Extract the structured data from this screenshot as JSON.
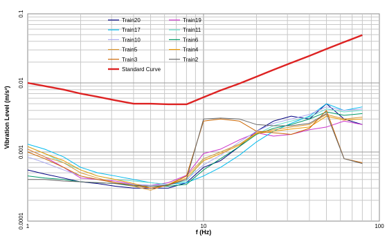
{
  "chart_data": {
    "type": "line",
    "xlabel": "f (Hz)",
    "ylabel": "Vibration Level (m/s²)",
    "x_scale": "log",
    "y_scale": "log",
    "xlim": [
      1,
      100
    ],
    "ylim": [
      0.0001,
      0.1
    ],
    "x_ticks": [
      "1",
      "10",
      "100"
    ],
    "y_ticks": [
      "0.0001",
      "0.001",
      "0.01",
      "0.1"
    ],
    "grid": true,
    "legend_placement": "top-left",
    "x": [
      1,
      1.25,
      1.6,
      2,
      2.5,
      3.15,
      4,
      5,
      6.3,
      8,
      10,
      12.5,
      16,
      20,
      25,
      31.5,
      40,
      50,
      63,
      80
    ],
    "series": [
      {
        "name": "Train20",
        "color": "#000080",
        "values": [
          0.00055,
          0.00048,
          0.00042,
          0.00037,
          0.00035,
          0.00032,
          0.0003,
          0.0003,
          0.0003,
          0.00036,
          0.0006,
          0.00075,
          0.0012,
          0.002,
          0.0028,
          0.0033,
          0.003,
          0.005,
          0.003,
          0.0025
        ]
      },
      {
        "name": "Train19",
        "color": "#cc33cc",
        "values": [
          0.0011,
          0.00085,
          0.0006,
          0.00042,
          0.0004,
          0.00038,
          0.00034,
          0.00033,
          0.00036,
          0.00046,
          0.00095,
          0.0011,
          0.0015,
          0.0019,
          0.0017,
          0.0018,
          0.0021,
          0.0023,
          0.0028,
          0.0025
        ]
      },
      {
        "name": "Train17",
        "color": "#00bbee",
        "values": [
          0.0013,
          0.0011,
          0.00085,
          0.0006,
          0.0005,
          0.00045,
          0.0004,
          0.00036,
          0.00034,
          0.00036,
          0.00045,
          0.0006,
          0.0009,
          0.0014,
          0.002,
          0.0026,
          0.0033,
          0.005,
          0.004,
          0.0045
        ]
      },
      {
        "name": "Train11",
        "color": "#66ddcc",
        "values": [
          0.0012,
          0.00095,
          0.0007,
          0.00055,
          0.00045,
          0.0004,
          0.00038,
          0.00036,
          0.00034,
          0.00038,
          0.0008,
          0.001,
          0.0013,
          0.0018,
          0.0024,
          0.0028,
          0.0032,
          0.0042,
          0.0038,
          0.004
        ]
      },
      {
        "name": "Train10",
        "color": "#aaaaee",
        "values": [
          0.00085,
          0.0007,
          0.00055,
          0.00045,
          0.0004,
          0.00036,
          0.00034,
          0.00033,
          0.00034,
          0.0004,
          0.00065,
          0.0009,
          0.0014,
          0.002,
          0.0026,
          0.003,
          0.0035,
          0.0045,
          0.004,
          0.0042
        ]
      },
      {
        "name": "Train6",
        "color": "#009966",
        "values": [
          0.00045,
          0.00042,
          0.0004,
          0.00037,
          0.00036,
          0.00035,
          0.00032,
          0.00032,
          0.00032,
          0.00034,
          0.00055,
          0.0008,
          0.0012,
          0.0018,
          0.0022,
          0.0025,
          0.003,
          0.0038,
          0.0034,
          0.0036
        ]
      },
      {
        "name": "Train5",
        "color": "#dd9933",
        "values": [
          0.0011,
          0.00085,
          0.0007,
          0.0005,
          0.00042,
          0.00036,
          0.00032,
          0.00028,
          0.00034,
          0.00045,
          0.0008,
          0.001,
          0.0013,
          0.0019,
          0.0021,
          0.0023,
          0.0025,
          0.0035,
          0.003,
          0.0032
        ]
      },
      {
        "name": "Train4",
        "color": "#ee9900",
        "values": [
          0.0012,
          0.00095,
          0.00075,
          0.00055,
          0.00045,
          0.0004,
          0.00035,
          0.0003,
          0.00033,
          0.00042,
          0.00075,
          0.00095,
          0.00125,
          0.00185,
          0.002,
          0.00215,
          0.0023,
          0.0033,
          0.0029,
          0.003
        ]
      },
      {
        "name": "Train3",
        "color": "#cc6600",
        "values": [
          0.001,
          0.0008,
          0.0006,
          0.00045,
          0.0004,
          0.00036,
          0.00033,
          0.0003,
          0.00033,
          0.00045,
          0.0028,
          0.003,
          0.0028,
          0.002,
          0.0019,
          0.0018,
          0.0022,
          0.004,
          0.0008,
          0.0007
        ]
      },
      {
        "name": "Train2",
        "color": "#666666",
        "values": [
          0.0004,
          0.0004,
          0.00038,
          0.00037,
          0.00036,
          0.00035,
          0.00033,
          0.00032,
          0.00033,
          0.0004,
          0.003,
          0.0031,
          0.003,
          0.0025,
          0.0024,
          0.0024,
          0.0026,
          0.0036,
          0.0008,
          0.00068
        ]
      },
      {
        "name": "Standard Curve",
        "color": "#dd2222",
        "values": [
          0.01,
          0.009,
          0.008,
          0.007,
          0.0063,
          0.0056,
          0.005,
          0.005,
          0.0049,
          0.0049,
          0.0062,
          0.0078,
          0.0098,
          0.0123,
          0.0155,
          0.0195,
          0.0246,
          0.031,
          0.039,
          0.0492
        ]
      }
    ]
  }
}
